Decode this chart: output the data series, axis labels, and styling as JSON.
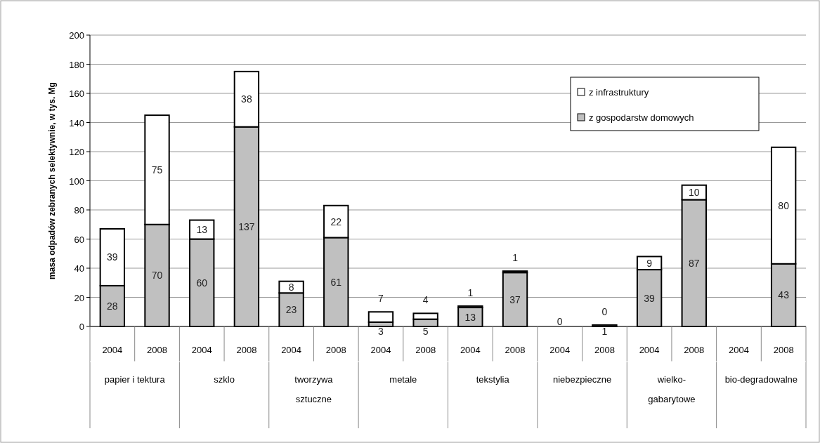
{
  "chart_data": {
    "type": "bar",
    "stacked": true,
    "ylabel": "masa odpadów zebranych selektywnie, w tys. Mg",
    "categories": [
      "2004",
      "2008",
      "2004",
      "2008",
      "2004",
      "2008",
      "2004",
      "2008",
      "2004",
      "2008",
      "2004",
      "2008",
      "2004",
      "2008",
      "2004",
      "2008"
    ],
    "series": [
      {
        "name": "z gospodarstw domowych",
        "color": "#c0c0c0",
        "values": [
          28,
          70,
          60,
          137,
          23,
          61,
          3,
          5,
          13,
          37,
          0,
          1,
          39,
          87,
          null,
          43
        ],
        "value_labels": [
          "28",
          "70",
          "60",
          "137",
          "23",
          "61",
          "3",
          "5",
          "13",
          "37",
          "0",
          "1",
          "39",
          "87",
          null,
          "43"
        ]
      },
      {
        "name": "z infrastruktury",
        "color": "#ffffff",
        "values": [
          39,
          75,
          13,
          38,
          8,
          22,
          7,
          4,
          1,
          1,
          0,
          0,
          9,
          10,
          null,
          80
        ],
        "value_labels": [
          "39",
          "75",
          "13",
          "38",
          "8",
          "22",
          "7",
          "4",
          "1",
          "1",
          null,
          "0",
          "9",
          "10",
          null,
          "80"
        ]
      }
    ],
    "annotations": [
      "papier i tektura",
      "szklo",
      "tworzywa sztuczne",
      "metale",
      "tekstylia",
      "niebezpieczne",
      "wielko-gabarytowe",
      "bio-degradowalne"
    ],
    "ylim": [
      0,
      200
    ],
    "yticks": [
      0,
      20,
      40,
      60,
      80,
      100,
      120,
      140,
      160,
      180,
      200
    ],
    "grid": "y",
    "legend": "top right"
  }
}
